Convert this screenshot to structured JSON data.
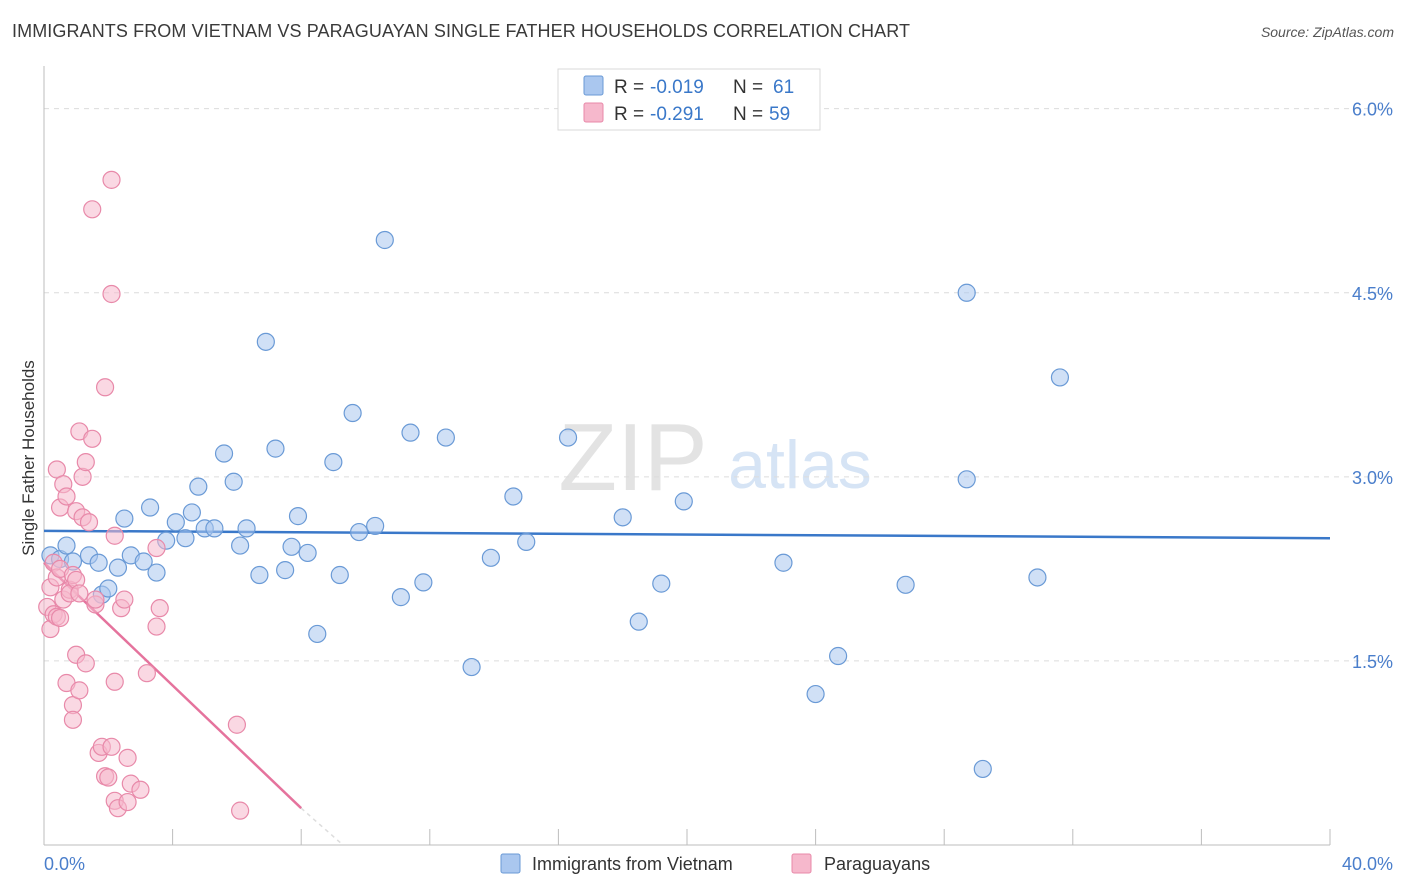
{
  "title": "IMMIGRANTS FROM VIETNAM VS PARAGUAYAN SINGLE FATHER HOUSEHOLDS CORRELATION CHART",
  "source": "Source: ZipAtlas.com",
  "watermark": {
    "zip": "ZIP",
    "atlas": "atlas"
  },
  "colors": {
    "blue_fill": "#aac7ef",
    "blue_stroke": "#6a9ad6",
    "blue_line": "#3a78c9",
    "pink_fill": "#f6b8cc",
    "pink_stroke": "#e889a9",
    "pink_line": "#e5739d",
    "axis_text": "#4a7ecb",
    "grid": "#dcdcdc"
  },
  "legend_box": {
    "blue": {
      "r_label": "R =",
      "r_value": "-0.019",
      "n_label": "N =",
      "n_value": "61"
    },
    "pink": {
      "r_label": "R =",
      "r_value": "-0.291",
      "n_label": "N =",
      "n_value": "59"
    }
  },
  "bottom_legend": {
    "blue_label": "Immigrants from Vietnam",
    "pink_label": "Paraguayans"
  },
  "chart_data": {
    "type": "scatter",
    "title": "IMMIGRANTS FROM VIETNAM VS PARAGUAYAN SINGLE FATHER HOUSEHOLDS CORRELATION CHART",
    "xlabel": "",
    "ylabel": "Single Father Households",
    "xlim": [
      0,
      40
    ],
    "ylim": [
      0,
      6.25
    ],
    "x_tick_labels": [
      {
        "value": 0,
        "label": "0.0%"
      },
      {
        "value": 40,
        "label": "40.0%"
      }
    ],
    "y_ticks": [
      {
        "value": 1.5,
        "label": "1.5%"
      },
      {
        "value": 3.0,
        "label": "3.0%"
      },
      {
        "value": 4.5,
        "label": "4.5%"
      },
      {
        "value": 6.0,
        "label": "6.0%"
      }
    ],
    "x_minor_ticks": [
      0,
      4,
      8,
      12,
      16,
      20,
      24,
      28,
      32,
      36,
      40
    ],
    "grid": true,
    "series": [
      {
        "name": "Immigrants from Vietnam",
        "color": "blue",
        "R": -0.019,
        "N": 61,
        "trend": {
          "x": [
            0,
            40
          ],
          "y": [
            2.56,
            2.5
          ]
        },
        "points": [
          [
            0.2,
            2.36
          ],
          [
            0.5,
            2.33
          ],
          [
            0.7,
            2.44
          ],
          [
            0.9,
            2.31
          ],
          [
            1.4,
            2.36
          ],
          [
            1.7,
            2.3
          ],
          [
            1.8,
            2.04
          ],
          [
            2.0,
            2.09
          ],
          [
            2.3,
            2.26
          ],
          [
            2.5,
            2.66
          ],
          [
            2.7,
            2.36
          ],
          [
            3.1,
            2.31
          ],
          [
            3.3,
            2.75
          ],
          [
            3.5,
            2.22
          ],
          [
            3.8,
            2.48
          ],
          [
            4.1,
            2.63
          ],
          [
            4.4,
            2.5
          ],
          [
            4.6,
            2.71
          ],
          [
            4.8,
            2.92
          ],
          [
            5.0,
            2.58
          ],
          [
            5.3,
            2.58
          ],
          [
            5.6,
            3.19
          ],
          [
            5.9,
            2.96
          ],
          [
            6.1,
            2.44
          ],
          [
            6.3,
            2.58
          ],
          [
            6.7,
            2.2
          ],
          [
            6.9,
            4.1
          ],
          [
            7.2,
            3.23
          ],
          [
            7.5,
            2.24
          ],
          [
            7.7,
            2.43
          ],
          [
            7.9,
            2.68
          ],
          [
            8.2,
            2.38
          ],
          [
            8.5,
            1.72
          ],
          [
            9.0,
            3.12
          ],
          [
            9.2,
            2.2
          ],
          [
            9.6,
            3.52
          ],
          [
            9.8,
            2.55
          ],
          [
            10.3,
            2.6
          ],
          [
            10.6,
            4.93
          ],
          [
            11.1,
            2.02
          ],
          [
            11.4,
            3.36
          ],
          [
            11.8,
            2.14
          ],
          [
            12.5,
            3.32
          ],
          [
            13.3,
            1.45
          ],
          [
            13.9,
            2.34
          ],
          [
            14.6,
            2.84
          ],
          [
            15.0,
            2.47
          ],
          [
            16.3,
            3.32
          ],
          [
            18.0,
            2.67
          ],
          [
            18.5,
            1.82
          ],
          [
            19.2,
            2.13
          ],
          [
            19.9,
            2.8
          ],
          [
            23.0,
            2.3
          ],
          [
            24.0,
            1.23
          ],
          [
            24.7,
            1.54
          ],
          [
            26.8,
            2.12
          ],
          [
            28.7,
            4.5
          ],
          [
            28.7,
            2.98
          ],
          [
            29.2,
            0.62
          ],
          [
            30.9,
            2.18
          ],
          [
            31.6,
            3.81
          ]
        ]
      },
      {
        "name": "Paraguayans",
        "color": "pink",
        "R": -0.291,
        "N": 59,
        "trend": {
          "x": [
            0,
            8.0
          ],
          "y": [
            2.3,
            0.3
          ]
        },
        "trend_dashed": {
          "x": [
            8.0,
            9.3
          ],
          "y": [
            0.3,
            0.0
          ]
        },
        "points": [
          [
            0.1,
            1.94
          ],
          [
            0.2,
            2.1
          ],
          [
            0.2,
            1.76
          ],
          [
            0.3,
            2.3
          ],
          [
            0.3,
            1.88
          ],
          [
            0.4,
            3.06
          ],
          [
            0.4,
            2.18
          ],
          [
            0.4,
            1.86
          ],
          [
            0.5,
            2.75
          ],
          [
            0.5,
            2.25
          ],
          [
            0.5,
            1.85
          ],
          [
            0.6,
            2.94
          ],
          [
            0.6,
            2.0
          ],
          [
            0.7,
            2.84
          ],
          [
            0.7,
            1.32
          ],
          [
            0.8,
            2.08
          ],
          [
            0.8,
            2.05
          ],
          [
            0.9,
            1.14
          ],
          [
            0.9,
            1.02
          ],
          [
            0.9,
            2.2
          ],
          [
            1.0,
            2.72
          ],
          [
            1.0,
            2.16
          ],
          [
            1.0,
            1.55
          ],
          [
            1.1,
            1.26
          ],
          [
            1.1,
            2.05
          ],
          [
            1.1,
            3.37
          ],
          [
            1.2,
            2.67
          ],
          [
            1.2,
            3.0
          ],
          [
            1.3,
            1.48
          ],
          [
            1.3,
            3.12
          ],
          [
            1.4,
            2.63
          ],
          [
            1.5,
            3.31
          ],
          [
            1.5,
            5.18
          ],
          [
            1.6,
            1.96
          ],
          [
            1.6,
            2.0
          ],
          [
            1.7,
            0.75
          ],
          [
            1.8,
            0.8
          ],
          [
            1.9,
            3.73
          ],
          [
            1.9,
            0.56
          ],
          [
            2.0,
            0.55
          ],
          [
            2.1,
            5.42
          ],
          [
            2.1,
            0.8
          ],
          [
            2.2,
            2.52
          ],
          [
            2.2,
            1.33
          ],
          [
            2.2,
            0.36
          ],
          [
            2.3,
            0.3
          ],
          [
            2.4,
            1.93
          ],
          [
            2.5,
            2.0
          ],
          [
            2.1,
            4.49
          ],
          [
            2.6,
            0.71
          ],
          [
            2.6,
            0.35
          ],
          [
            2.7,
            0.5
          ],
          [
            3.0,
            0.45
          ],
          [
            3.2,
            1.4
          ],
          [
            3.5,
            2.42
          ],
          [
            3.5,
            1.78
          ],
          [
            3.6,
            1.93
          ],
          [
            6.0,
            0.98
          ],
          [
            6.1,
            0.28
          ]
        ]
      }
    ]
  }
}
